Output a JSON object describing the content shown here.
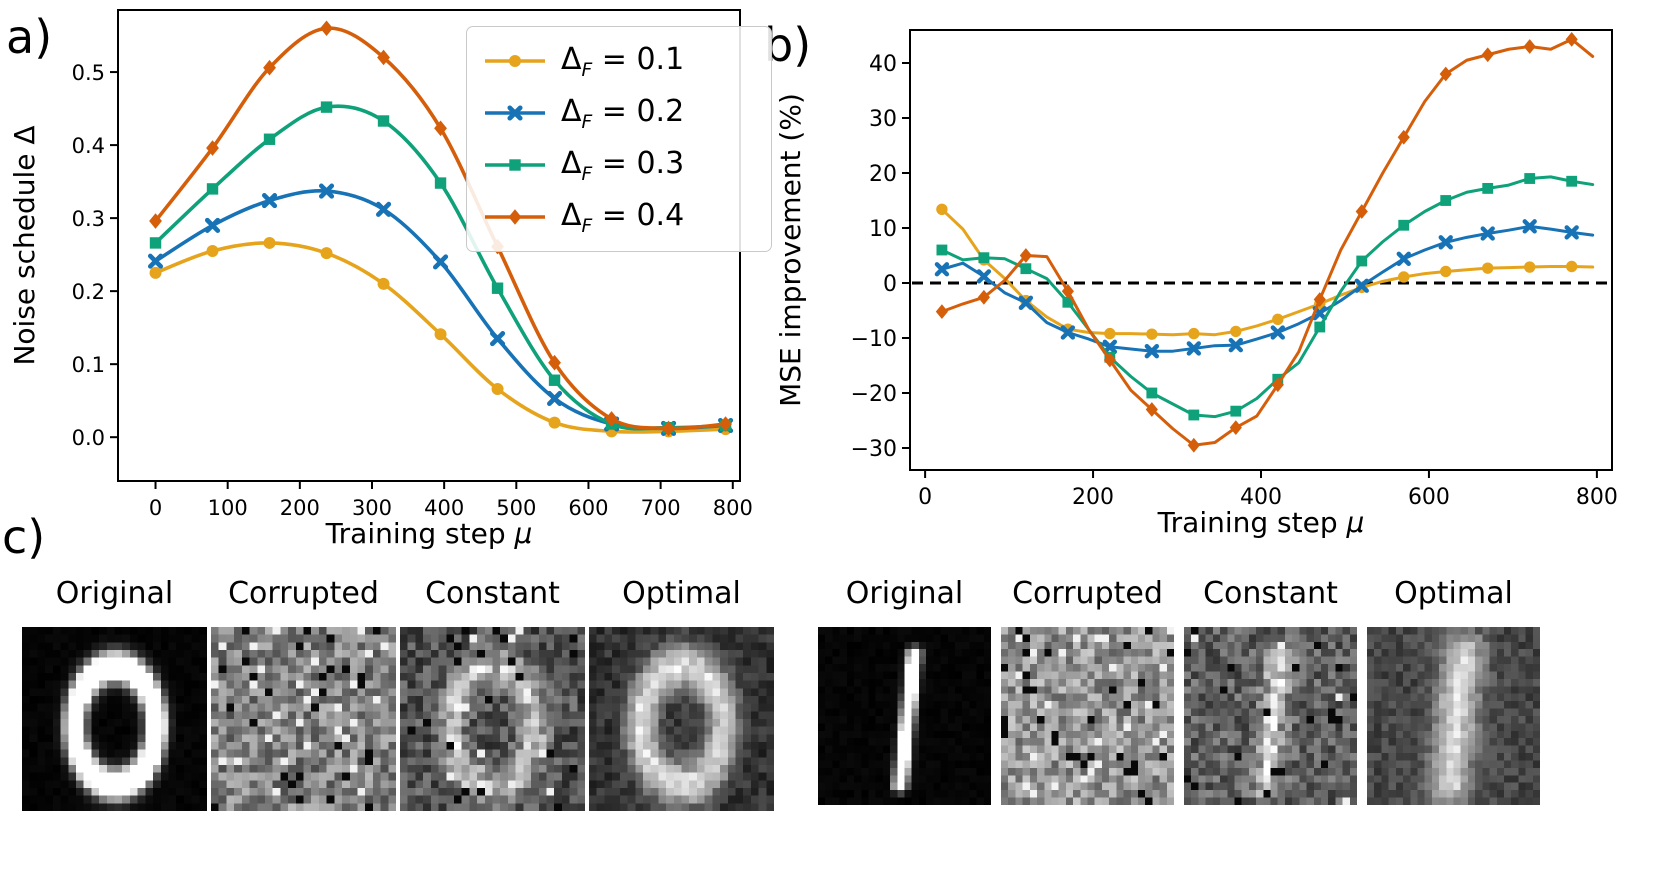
{
  "panels": {
    "a_label": "a)",
    "b_label": "b)",
    "c_label": "c)"
  },
  "legend": {
    "items": [
      {
        "sym": "Δ",
        "sub": "F",
        "val": " = 0.1"
      },
      {
        "sym": "Δ",
        "sub": "F",
        "val": " = 0.2"
      },
      {
        "sym": "Δ",
        "sub": "F",
        "val": " = 0.3"
      },
      {
        "sym": "Δ",
        "sub": "F",
        "val": " = 0.4"
      }
    ]
  },
  "chart_data": [
    {
      "id": "panel-a",
      "type": "line",
      "title": "",
      "xlabel": "Training step ",
      "xlabel_sym": "μ",
      "ylabel": "Noise schedule Δ",
      "xlim": [
        -52,
        810
      ],
      "ylim": [
        -0.06,
        0.585
      ],
      "grid": false,
      "smooth": true,
      "markers_every": 1,
      "xticks": [
        {
          "v": 0,
          "t": "0"
        },
        {
          "v": 100,
          "t": "100"
        },
        {
          "v": 200,
          "t": "200"
        },
        {
          "v": 300,
          "t": "300"
        },
        {
          "v": 400,
          "t": "400"
        },
        {
          "v": 500,
          "t": "500"
        },
        {
          "v": 600,
          "t": "600"
        },
        {
          "v": 700,
          "t": "700"
        },
        {
          "v": 800,
          "t": "800"
        }
      ],
      "yticks": [
        {
          "v": 0.0,
          "t": "0.0"
        },
        {
          "v": 0.1,
          "t": "0.1"
        },
        {
          "v": 0.2,
          "t": "0.2"
        },
        {
          "v": 0.3,
          "t": "0.3"
        },
        {
          "v": 0.4,
          "t": "0.4"
        },
        {
          "v": 0.5,
          "t": "0.5"
        }
      ],
      "x": [
        0,
        79,
        158,
        237,
        316,
        395,
        474,
        553,
        632,
        711,
        790
      ],
      "series": [
        {
          "name": "ΔF = 0.1",
          "color": "#E6A41C",
          "marker": "circle",
          "values": [
            0.225,
            0.255,
            0.266,
            0.252,
            0.21,
            0.141,
            0.066,
            0.02,
            0.008,
            0.008,
            0.011
          ]
        },
        {
          "name": "ΔF = 0.2",
          "color": "#1773B5",
          "marker": "x",
          "values": [
            0.241,
            0.29,
            0.324,
            0.337,
            0.312,
            0.24,
            0.135,
            0.053,
            0.018,
            0.012,
            0.016
          ]
        },
        {
          "name": "ΔF = 0.3",
          "color": "#0FA179",
          "marker": "square",
          "values": [
            0.266,
            0.34,
            0.408,
            0.452,
            0.433,
            0.348,
            0.204,
            0.078,
            0.018,
            0.013,
            0.016
          ]
        },
        {
          "name": "ΔF = 0.4",
          "color": "#D55E0A",
          "marker": "diamond",
          "values": [
            0.296,
            0.396,
            0.506,
            0.56,
            0.52,
            0.423,
            0.261,
            0.102,
            0.025,
            0.012,
            0.018
          ]
        }
      ]
    },
    {
      "id": "panel-b",
      "type": "line",
      "title": "",
      "xlabel": "Training step ",
      "xlabel_sym": "μ",
      "ylabel": "MSE improvement (%)",
      "xlim": [
        -18,
        818
      ],
      "ylim": [
        -34,
        46
      ],
      "grid": false,
      "smooth": false,
      "markers_every": 2,
      "zero_line": true,
      "xticks": [
        {
          "v": 0,
          "t": "0"
        },
        {
          "v": 200,
          "t": "200"
        },
        {
          "v": 400,
          "t": "400"
        },
        {
          "v": 600,
          "t": "600"
        },
        {
          "v": 800,
          "t": "800"
        }
      ],
      "yticks": [
        {
          "v": -30,
          "t": "−30"
        },
        {
          "v": -20,
          "t": "−20"
        },
        {
          "v": -10,
          "t": "−10"
        },
        {
          "v": 0,
          "t": "0"
        },
        {
          "v": 10,
          "t": "10"
        },
        {
          "v": 20,
          "t": "20"
        },
        {
          "v": 30,
          "t": "30"
        },
        {
          "v": 40,
          "t": "40"
        }
      ],
      "x": [
        20,
        45,
        70,
        95,
        120,
        145,
        170,
        195,
        220,
        245,
        270,
        295,
        320,
        345,
        370,
        395,
        420,
        445,
        470,
        495,
        520,
        545,
        570,
        595,
        620,
        645,
        670,
        695,
        720,
        745,
        770,
        795
      ],
      "series": [
        {
          "name": "ΔF = 0.1",
          "color": "#E6A41C",
          "marker": "circle",
          "values": [
            13.4,
            9.8,
            4.2,
            0.8,
            -3.2,
            -6.2,
            -8.4,
            -9.0,
            -9.2,
            -9.2,
            -9.3,
            -9.4,
            -9.2,
            -9.4,
            -8.8,
            -7.8,
            -6.6,
            -5.2,
            -3.8,
            -2.2,
            -0.8,
            0.3,
            1.1,
            1.7,
            2.1,
            2.4,
            2.7,
            2.8,
            2.9,
            3.0,
            3.0,
            2.9
          ]
        },
        {
          "name": "ΔF = 0.2",
          "color": "#1773B5",
          "marker": "x",
          "values": [
            2.5,
            3.6,
            1.2,
            -1.8,
            -3.6,
            -7.2,
            -9.0,
            -10.2,
            -11.6,
            -12.0,
            -12.4,
            -12.4,
            -11.9,
            -11.4,
            -11.3,
            -10.2,
            -9.0,
            -7.4,
            -5.5,
            -3.2,
            -0.5,
            2.0,
            4.4,
            6.0,
            7.4,
            8.3,
            9.0,
            9.6,
            10.3,
            9.8,
            9.2,
            8.7
          ]
        },
        {
          "name": "ΔF = 0.3",
          "color": "#0FA179",
          "marker": "square",
          "values": [
            6.0,
            4.2,
            4.6,
            4.4,
            2.6,
            0.8,
            -3.5,
            -8.5,
            -13.5,
            -17.0,
            -20.0,
            -22.0,
            -24.0,
            -24.3,
            -23.3,
            -21.0,
            -17.5,
            -14.5,
            -8.0,
            -1.5,
            4.0,
            7.5,
            10.5,
            13.0,
            15.0,
            16.5,
            17.2,
            17.8,
            19.0,
            19.3,
            18.5,
            17.9
          ]
        },
        {
          "name": "ΔF = 0.4",
          "color": "#D55E0A",
          "marker": "diamond",
          "values": [
            -5.2,
            -3.8,
            -2.6,
            0.5,
            5.0,
            4.8,
            -1.5,
            -8.5,
            -14.0,
            -19.5,
            -23.0,
            -26.5,
            -29.5,
            -29.0,
            -26.3,
            -24.2,
            -18.5,
            -12.5,
            -3.0,
            6.0,
            13.0,
            20.0,
            26.5,
            33.0,
            38.0,
            40.5,
            41.5,
            42.5,
            43.0,
            42.5,
            44.3,
            41.2
          ]
        }
      ]
    }
  ],
  "panel_c": {
    "groups": [
      {
        "digit": "0",
        "items": [
          {
            "label": "Original",
            "style": "original"
          },
          {
            "label": "Corrupted",
            "style": "corrupted"
          },
          {
            "label": "Constant",
            "style": "constant"
          },
          {
            "label": "Optimal",
            "style": "optimal"
          }
        ]
      },
      {
        "digit": "1",
        "items": [
          {
            "label": "Original",
            "style": "original"
          },
          {
            "label": "Corrupted",
            "style": "corrupted"
          },
          {
            "label": "Constant",
            "style": "constant"
          },
          {
            "label": "Optimal",
            "style": "optimal"
          }
        ]
      }
    ]
  }
}
